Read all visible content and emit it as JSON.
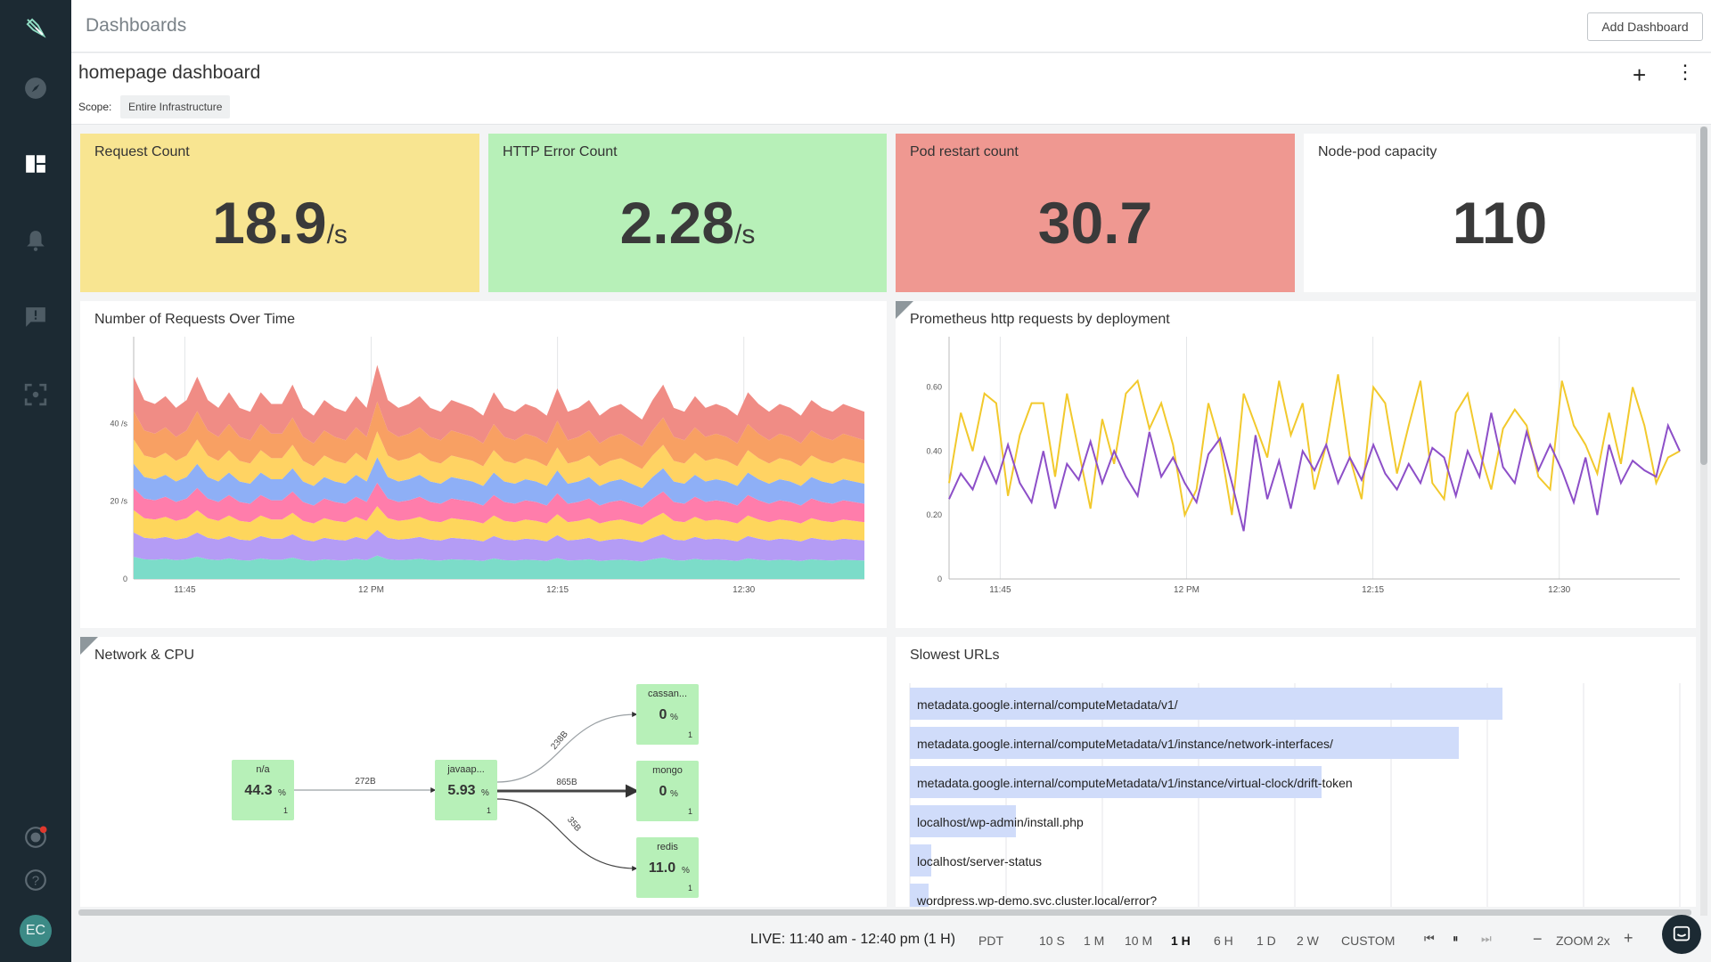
{
  "header": {
    "title": "Dashboards",
    "add_button": "Add Dashboard"
  },
  "dashboard": {
    "name": "homepage dashboard",
    "scope_label": "Scope:",
    "scope_value": "Entire Infrastructure"
  },
  "sidebar": {
    "items": [
      {
        "name": "explore",
        "icon": "compass-icon"
      },
      {
        "name": "dashboards",
        "icon": "dashboard-icon"
      },
      {
        "name": "alerts",
        "icon": "bell-icon"
      },
      {
        "name": "events",
        "icon": "comment-alert-icon"
      },
      {
        "name": "capture",
        "icon": "focus-icon"
      },
      {
        "name": "notifications",
        "icon": "target-icon"
      },
      {
        "name": "help",
        "icon": "help-icon"
      }
    ],
    "avatar": "EC"
  },
  "colors": {
    "request_count_bg": "#f8e591",
    "http_error_bg": "#b7f0b8",
    "pod_restart_bg": "#ef9891",
    "sidebar_bg": "#1c2a33",
    "stream_colors": [
      "#f08c85",
      "#f8a063",
      "#ffd363",
      "#8eaff6",
      "#ff7dab",
      "#fed65c",
      "#b49cf5",
      "#7cdcc9"
    ],
    "line_colors": [
      "#f2c92c",
      "#8d4fc8"
    ]
  },
  "numbers": [
    {
      "title": "Request Count",
      "value": "18.9",
      "unit": "/s"
    },
    {
      "title": "HTTP Error Count",
      "value": "2.28",
      "unit": "/s"
    },
    {
      "title": "Pod restart count",
      "value": "30.7",
      "unit": ""
    },
    {
      "title": "Node-pod capacity",
      "value": "110",
      "unit": ""
    }
  ],
  "charts": {
    "requests_title": "Number of Requests Over Time",
    "prometheus_title": "Prometheus http requests by deployment",
    "network_title": "Network & CPU",
    "slowest_title": "Slowest URLs"
  },
  "chart_data": [
    {
      "type": "area",
      "title": "Number of Requests Over Time",
      "x_ticks": [
        "11:45",
        "12 PM",
        "12:15",
        "12:30"
      ],
      "y_ticks": [
        "0",
        "20 /s",
        "40 /s"
      ],
      "ylim": [
        0,
        60
      ],
      "series_count": 8,
      "total": [
        52,
        46,
        45,
        47,
        44,
        46,
        52,
        46,
        44,
        48,
        44,
        43,
        48,
        45,
        45,
        50,
        44,
        42,
        46,
        44,
        43,
        47,
        44,
        55,
        46,
        44,
        45,
        47,
        44,
        43,
        46,
        45,
        44,
        42,
        48,
        44,
        43,
        45,
        44,
        42,
        49,
        43,
        44,
        46,
        42,
        44,
        45,
        43,
        41,
        46,
        50,
        44,
        43,
        47,
        44,
        45,
        44,
        42,
        48,
        45,
        43,
        45,
        44,
        42,
        46,
        44,
        43,
        45,
        44,
        43
      ]
    },
    {
      "type": "line",
      "title": "Prometheus http requests by deployment",
      "x_ticks": [
        "11:45",
        "12 PM",
        "12:15",
        "12:30"
      ],
      "y_ticks": [
        "0",
        "0.20",
        "0.40",
        "0.60"
      ],
      "ylim": [
        0,
        0.73
      ],
      "series": [
        {
          "values": [
            0.3,
            0.52,
            0.4,
            0.58,
            0.55,
            0.26,
            0.45,
            0.55,
            0.55,
            0.32,
            0.58,
            0.4,
            0.22,
            0.5,
            0.36,
            0.58,
            0.62,
            0.47,
            0.55,
            0.42,
            0.2,
            0.28,
            0.55,
            0.42,
            0.2,
            0.58,
            0.48,
            0.38,
            0.62,
            0.45,
            0.55,
            0.28,
            0.42,
            0.64,
            0.38,
            0.25,
            0.6,
            0.55,
            0.33,
            0.48,
            0.62,
            0.3,
            0.25,
            0.52,
            0.58,
            0.4,
            0.28,
            0.47,
            0.53,
            0.48,
            0.32,
            0.28,
            0.62,
            0.48,
            0.42,
            0.33,
            0.52,
            0.36,
            0.6,
            0.48,
            0.3,
            0.38,
            0.4
          ]
        },
        {
          "values": [
            0.25,
            0.33,
            0.28,
            0.38,
            0.3,
            0.42,
            0.3,
            0.24,
            0.4,
            0.22,
            0.36,
            0.31,
            0.43,
            0.3,
            0.4,
            0.32,
            0.26,
            0.46,
            0.32,
            0.38,
            0.3,
            0.24,
            0.39,
            0.44,
            0.3,
            0.15,
            0.45,
            0.25,
            0.37,
            0.22,
            0.4,
            0.34,
            0.42,
            0.3,
            0.38,
            0.31,
            0.42,
            0.33,
            0.28,
            0.36,
            0.3,
            0.41,
            0.38,
            0.26,
            0.4,
            0.32,
            0.52,
            0.35,
            0.3,
            0.46,
            0.34,
            0.42,
            0.34,
            0.24,
            0.38,
            0.2,
            0.42,
            0.3,
            0.37,
            0.34,
            0.32,
            0.48,
            0.4
          ]
        }
      ]
    }
  ],
  "topology": {
    "nodes": [
      {
        "name": "n/a",
        "value": "44.3",
        "unit": "%",
        "count": "1"
      },
      {
        "name": "javaap...",
        "value": "5.93",
        "unit": "%",
        "count": "1"
      },
      {
        "name": "cassan...",
        "value": "0",
        "unit": "%",
        "count": "1"
      },
      {
        "name": "mongo",
        "value": "0",
        "unit": "%",
        "count": "1"
      },
      {
        "name": "redis",
        "value": "11.0",
        "unit": "%",
        "count": "1"
      }
    ],
    "edges": [
      {
        "label": "272B"
      },
      {
        "label": "238B"
      },
      {
        "label": "865B"
      },
      {
        "label": "35B"
      }
    ]
  },
  "slowest_urls": [
    {
      "url": "metadata.google.internal/computeMetadata/v1/",
      "value": 0.95
    },
    {
      "url": "metadata.google.internal/computeMetadata/v1/instance/network-interfaces/",
      "value": 0.88
    },
    {
      "url": "metadata.google.internal/computeMetadata/v1/instance/virtual-clock/drift-token",
      "value": 0.66
    },
    {
      "url": "localhost/wp-admin/install.php",
      "value": 0.17
    },
    {
      "url": "localhost/server-status",
      "value": 0.035
    },
    {
      "url": "wordpress.wp-demo.svc.cluster.local/error?",
      "value": 0.03
    }
  ],
  "footer": {
    "live": "LIVE: 11:40 am - 12:40 pm (1 H)",
    "timezone": "PDT",
    "ranges": [
      "10 S",
      "1 M",
      "10 M",
      "1 H",
      "6 H",
      "1 D",
      "2 W",
      "CUSTOM"
    ],
    "active_range": "1 H",
    "zoom": "ZOOM 2x",
    "zoom_out": "−",
    "zoom_in": "+"
  }
}
